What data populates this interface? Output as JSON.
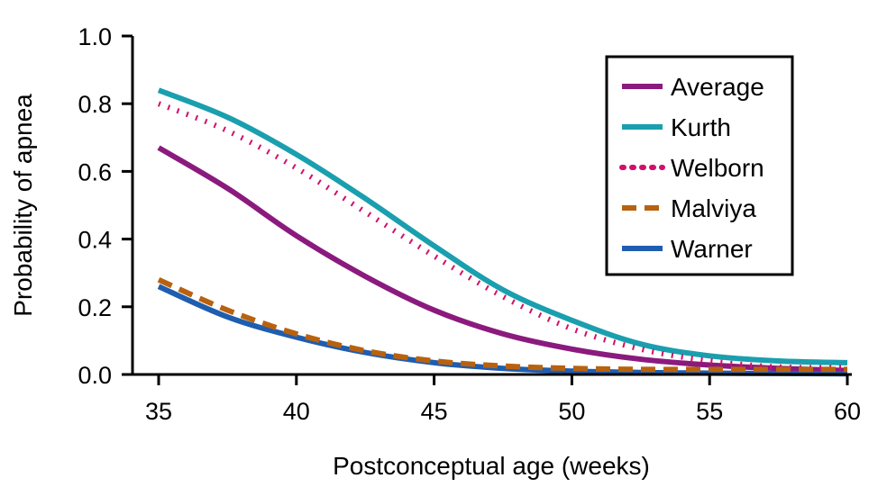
{
  "chart_data": {
    "type": "line",
    "xlabel": "Postconceptual age (weeks)",
    "ylabel": "Probability of apnea",
    "xlim": [
      35,
      60
    ],
    "ylim": [
      0,
      1.0
    ],
    "x_ticks": [
      35,
      40,
      45,
      50,
      55,
      60
    ],
    "y_ticks": [
      0.0,
      0.2,
      0.4,
      0.6,
      0.8,
      1.0
    ],
    "x_tick_labels": [
      "35",
      "40",
      "45",
      "50",
      "55",
      "60"
    ],
    "y_tick_labels": [
      "0.0",
      "0.2",
      "0.4",
      "0.6",
      "0.8",
      "1.0"
    ],
    "grid": false,
    "legend_position": "top-right",
    "x": [
      35,
      37.5,
      40,
      42.5,
      45,
      47.5,
      50,
      52.5,
      55,
      57.5,
      60
    ],
    "series": [
      {
        "name": "Average",
        "color": "#8B1A7E",
        "style": "solid",
        "values": [
          0.67,
          0.55,
          0.41,
          0.29,
          0.19,
          0.12,
          0.075,
          0.045,
          0.028,
          0.018,
          0.012
        ]
      },
      {
        "name": "Kurth",
        "color": "#1A9FAE",
        "style": "solid",
        "values": [
          0.84,
          0.76,
          0.65,
          0.52,
          0.38,
          0.25,
          0.16,
          0.09,
          0.055,
          0.04,
          0.035
        ]
      },
      {
        "name": "Welborn",
        "color": "#D0106A",
        "style": "dotted",
        "values": [
          0.8,
          0.72,
          0.61,
          0.48,
          0.35,
          0.23,
          0.135,
          0.075,
          0.04,
          0.022,
          0.02
        ]
      },
      {
        "name": "Malviya",
        "color": "#B8620F",
        "style": "dashed",
        "values": [
          0.28,
          0.19,
          0.12,
          0.07,
          0.04,
          0.025,
          0.018,
          0.015,
          0.015,
          0.015,
          0.015
        ]
      },
      {
        "name": "Warner",
        "color": "#1F5DAF",
        "style": "solid",
        "values": [
          0.26,
          0.17,
          0.11,
          0.065,
          0.035,
          0.018,
          0.01,
          0.006,
          0.004,
          0.003,
          0.002
        ]
      }
    ]
  }
}
